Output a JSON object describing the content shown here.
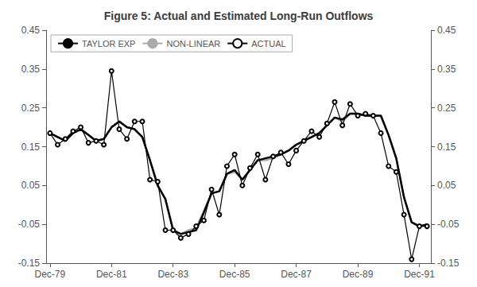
{
  "chart_data": {
    "type": "line",
    "title": "Figure 5: Actual and Estimated Long-Run Outflows",
    "categories": [
      "Dec-79",
      null,
      null,
      null,
      null,
      null,
      null,
      null,
      "Dec-81",
      null,
      null,
      null,
      null,
      null,
      null,
      null,
      "Dec-83",
      null,
      null,
      null,
      null,
      null,
      null,
      null,
      "Dec-85",
      null,
      null,
      null,
      null,
      null,
      null,
      null,
      "Dec-87",
      null,
      null,
      null,
      null,
      null,
      null,
      null,
      "Dec-89",
      null,
      null,
      null,
      null,
      null,
      null,
      null,
      "Dec-91",
      null
    ],
    "ylim": [
      -0.15,
      0.45
    ],
    "yticks": [
      -0.15,
      -0.05,
      0.05,
      0.15,
      0.25,
      0.35,
      0.45
    ],
    "y2lim": [
      -0.15,
      0.45
    ],
    "y2ticks": [
      -0.15,
      -0.05,
      0.05,
      0.15,
      0.25,
      0.35,
      0.45
    ],
    "grid": false,
    "legend": "upper left",
    "series": [
      {
        "name": "TAYLOR EXP",
        "color": "#000000",
        "marker": "none",
        "line_style": "solid",
        "values": [
          0.185,
          0.175,
          0.165,
          0.185,
          0.195,
          0.18,
          0.165,
          0.17,
          0.2,
          0.215,
          0.2,
          0.195,
          0.175,
          0.115,
          0.05,
          0.015,
          -0.065,
          -0.075,
          -0.07,
          -0.065,
          -0.02,
          0.03,
          0.035,
          0.08,
          0.09,
          0.065,
          0.09,
          0.115,
          0.12,
          0.125,
          0.13,
          0.14,
          0.155,
          0.165,
          0.175,
          0.185,
          0.205,
          0.225,
          0.22,
          0.235,
          0.235,
          0.23,
          0.23,
          0.23,
          0.18,
          0.12,
          0.02,
          -0.045,
          -0.055,
          -0.05
        ]
      },
      {
        "name": "NON-LINEAR",
        "color": "#aaaaaa",
        "marker": "none",
        "line_style": "solid",
        "values": [
          0.185,
          0.175,
          0.165,
          0.185,
          0.195,
          0.18,
          0.165,
          0.17,
          0.2,
          0.215,
          0.2,
          0.195,
          0.175,
          0.115,
          0.05,
          0.015,
          -0.065,
          -0.075,
          -0.065,
          -0.06,
          -0.015,
          0.03,
          0.035,
          0.08,
          0.085,
          0.065,
          0.09,
          0.115,
          0.115,
          0.12,
          0.13,
          0.14,
          0.155,
          0.165,
          0.175,
          0.185,
          0.205,
          0.225,
          0.215,
          0.235,
          0.235,
          0.23,
          0.23,
          0.23,
          0.18,
          0.12,
          0.02,
          -0.045,
          -0.055,
          -0.05
        ]
      },
      {
        "name": "ACTUAL",
        "color": "#000000",
        "marker": "circle",
        "line_style": "solid",
        "values": [
          0.185,
          0.155,
          0.17,
          0.19,
          0.2,
          0.16,
          0.165,
          0.155,
          0.345,
          0.195,
          0.17,
          0.215,
          0.215,
          0.065,
          0.06,
          -0.065,
          -0.065,
          -0.085,
          -0.075,
          -0.055,
          -0.04,
          0.04,
          -0.025,
          0.1,
          0.13,
          0.05,
          0.095,
          0.13,
          0.065,
          0.125,
          0.135,
          0.105,
          0.14,
          0.165,
          0.19,
          0.175,
          0.21,
          0.265,
          0.205,
          0.26,
          0.23,
          0.235,
          0.23,
          0.185,
          0.1,
          0.085,
          -0.025,
          -0.14,
          -0.055,
          -0.055
        ]
      }
    ]
  }
}
